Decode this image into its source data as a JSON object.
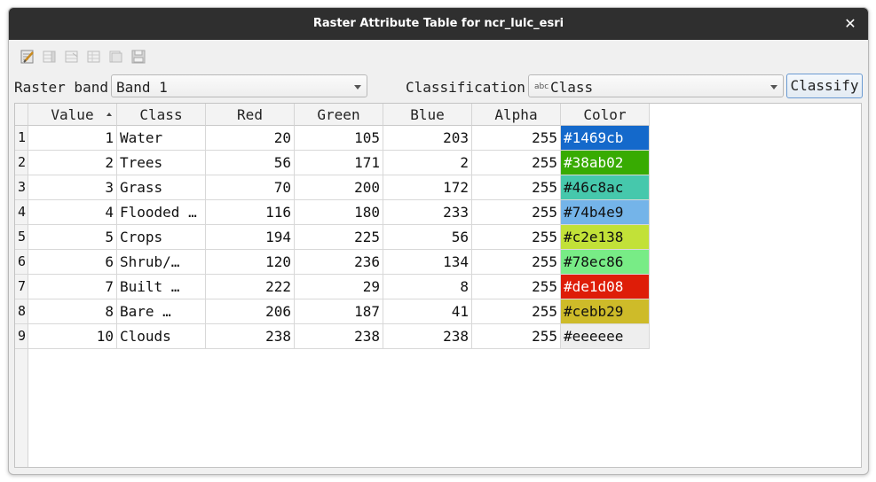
{
  "window": {
    "title": "Raster Attribute Table for ncr_lulc_esri",
    "close_glyph": "✕"
  },
  "toolbar": {
    "buttons": [
      {
        "name": "toggle-editing-icon"
      },
      {
        "name": "add-column-icon"
      },
      {
        "name": "remove-column-icon"
      },
      {
        "name": "add-row-icon"
      },
      {
        "name": "remove-row-icon"
      },
      {
        "name": "save-icon"
      }
    ]
  },
  "controls": {
    "band_label": "Raster band",
    "band_value": "Band 1",
    "classification_label": "Classification",
    "classification_icon": "abc",
    "classification_value": "Class",
    "classify_button": "Classify"
  },
  "table": {
    "columns": [
      "Value",
      "Class",
      "Red",
      "Green",
      "Blue",
      "Alpha",
      "Color"
    ],
    "sorted_column": "Value",
    "rows": [
      {
        "num": "1",
        "value": "1",
        "class": "Water",
        "red": "20",
        "green": "105",
        "blue": "203",
        "alpha": "255",
        "color": "#1469cb",
        "text_color": "#ffffff"
      },
      {
        "num": "2",
        "value": "2",
        "class": "Trees",
        "red": "56",
        "green": "171",
        "blue": "2",
        "alpha": "255",
        "color": "#38ab02",
        "text_color": "#ffffff"
      },
      {
        "num": "3",
        "value": "3",
        "class": "Grass",
        "red": "70",
        "green": "200",
        "blue": "172",
        "alpha": "255",
        "color": "#46c8ac",
        "text_color": "#111111"
      },
      {
        "num": "4",
        "value": "4",
        "class": "Flooded …",
        "red": "116",
        "green": "180",
        "blue": "233",
        "alpha": "255",
        "color": "#74b4e9",
        "text_color": "#111111"
      },
      {
        "num": "5",
        "value": "5",
        "class": "Crops",
        "red": "194",
        "green": "225",
        "blue": "56",
        "alpha": "255",
        "color": "#c2e138",
        "text_color": "#111111"
      },
      {
        "num": "6",
        "value": "6",
        "class": "Shrub/…",
        "red": "120",
        "green": "236",
        "blue": "134",
        "alpha": "255",
        "color": "#78ec86",
        "text_color": "#111111"
      },
      {
        "num": "7",
        "value": "7",
        "class": "Built …",
        "red": "222",
        "green": "29",
        "blue": "8",
        "alpha": "255",
        "color": "#de1d08",
        "text_color": "#ffffff"
      },
      {
        "num": "8",
        "value": "8",
        "class": "Bare …",
        "red": "206",
        "green": "187",
        "blue": "41",
        "alpha": "255",
        "color": "#cebb29",
        "text_color": "#111111"
      },
      {
        "num": "9",
        "value": "10",
        "class": "Clouds",
        "red": "238",
        "green": "238",
        "blue": "238",
        "alpha": "255",
        "color": "#eeeeee",
        "text_color": "#111111"
      }
    ]
  }
}
